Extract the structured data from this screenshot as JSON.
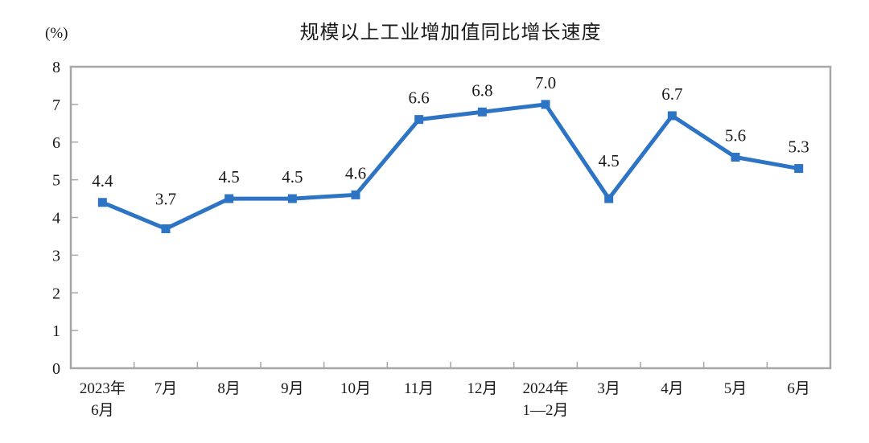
{
  "header": {
    "title": "规模以上工业增加值同比增长速度",
    "unit_label": "(%)"
  },
  "chart_data": {
    "type": "line",
    "title": "规模以上工业增加值同比增长速度",
    "ylabel": "(%)",
    "categories": [
      [
        "2023年",
        "6月"
      ],
      [
        "7月"
      ],
      [
        "8月"
      ],
      [
        "9月"
      ],
      [
        "10月"
      ],
      [
        "11月"
      ],
      [
        "12月"
      ],
      [
        "2024年",
        "1—2月"
      ],
      [
        "3月"
      ],
      [
        "4月"
      ],
      [
        "5月"
      ],
      [
        "6月"
      ]
    ],
    "values": [
      4.4,
      3.7,
      4.5,
      4.5,
      4.6,
      6.6,
      6.8,
      7.0,
      4.5,
      6.7,
      5.6,
      5.3
    ],
    "value_labels": [
      "4.4",
      "3.7",
      "4.5",
      "4.5",
      "4.6",
      "6.6",
      "6.8",
      "7.0",
      "4.5",
      "6.7",
      "5.6",
      "5.3"
    ],
    "ylim": [
      0,
      8
    ],
    "ytick_step": 1,
    "yticks": [
      0,
      1,
      2,
      3,
      4,
      5,
      6,
      7,
      8
    ],
    "grid": false,
    "legend": "none",
    "marker": "square",
    "colors": {
      "line": "#2E74C4",
      "marker": "#2E74C4",
      "axis_border": "#A7A7A7",
      "text": "#1A1A1A"
    },
    "layout": {
      "default_label_offset": -20,
      "label_offsets": {
        "1": -30,
        "8": -40
      }
    }
  }
}
